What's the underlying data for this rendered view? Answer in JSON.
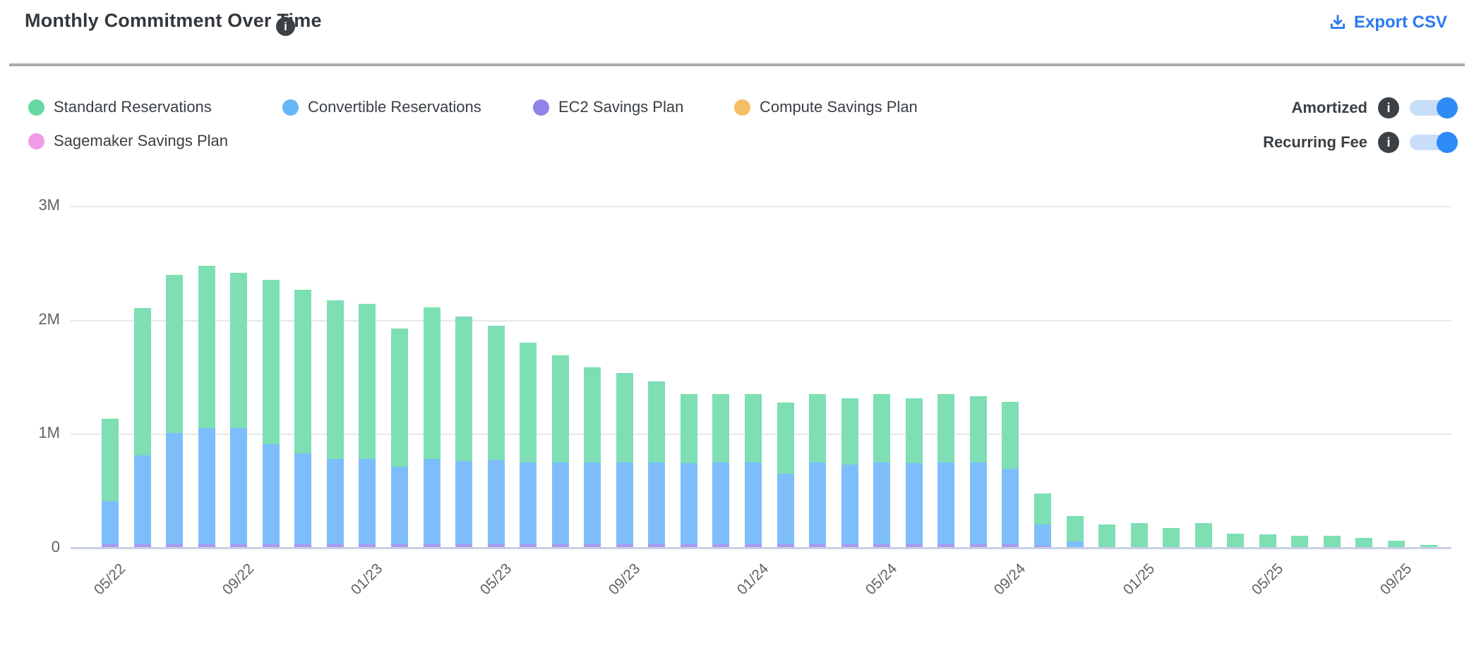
{
  "header": {
    "title": "Monthly Commitment Over Time",
    "info_icon": "i",
    "export_label": "Export CSV"
  },
  "legend": [
    {
      "label": "Standard Reservations",
      "color": "#66d9a3"
    },
    {
      "label": "Convertible Reservations",
      "color": "#66b5f6"
    },
    {
      "label": "EC2 Savings Plan",
      "color": "#8f82e8"
    },
    {
      "label": "Compute Savings Plan",
      "color": "#f5bd64"
    },
    {
      "label": "Sagemaker Savings Plan",
      "color": "#ef9ce6"
    }
  ],
  "toggles": [
    {
      "label": "Amortized",
      "state": "on",
      "info_icon": "i"
    },
    {
      "label": "Recurring Fee",
      "state": "on",
      "info_icon": "i"
    }
  ],
  "colors": {
    "accent_blue": "#2979f2",
    "toggle_track": "#c8ddf9",
    "toggle_knob": "#2e8bf7",
    "grid": "#e7e7e9",
    "axis_line": "#c9cfe4"
  },
  "chart_data": {
    "type": "bar",
    "stacked": true,
    "title": "Monthly Commitment Over Time",
    "unit": "M (millions USD)",
    "ylim": [
      0,
      3
    ],
    "y_ticks": [
      "0",
      "1M",
      "2M",
      "3M"
    ],
    "x_tick_every": 4,
    "grid": true,
    "legend_position": "top-left",
    "categories": [
      "05/22",
      "06/22",
      "07/22",
      "08/22",
      "09/22",
      "10/22",
      "11/22",
      "12/22",
      "01/23",
      "02/23",
      "03/23",
      "04/23",
      "05/23",
      "06/23",
      "07/23",
      "08/23",
      "09/23",
      "10/23",
      "11/23",
      "12/23",
      "01/24",
      "02/24",
      "03/24",
      "04/24",
      "05/24",
      "06/24",
      "07/24",
      "08/24",
      "09/24",
      "10/24",
      "11/24",
      "12/24",
      "01/25",
      "02/25",
      "03/25",
      "04/25",
      "05/25",
      "06/25",
      "07/25",
      "08/25",
      "09/25",
      "10/25"
    ],
    "series_bottom_to_top": [
      {
        "name": "EC2 Savings Plan",
        "color": "#a99af0",
        "values": [
          0.025,
          0.025,
          0.025,
          0.025,
          0.025,
          0.025,
          0.025,
          0.025,
          0.025,
          0.025,
          0.025,
          0.025,
          0.025,
          0.025,
          0.025,
          0.025,
          0.025,
          0.025,
          0.025,
          0.025,
          0.025,
          0.025,
          0.025,
          0.025,
          0.025,
          0.025,
          0.025,
          0.025,
          0.025,
          0.01,
          0,
          0,
          0,
          0,
          0,
          0,
          0,
          0,
          0,
          0,
          0,
          0
        ]
      },
      {
        "name": "Convertible Reservations",
        "color": "#7dbefa",
        "values": [
          0.38,
          0.78,
          0.98,
          1.02,
          1.02,
          0.88,
          0.8,
          0.75,
          0.75,
          0.68,
          0.75,
          0.73,
          0.74,
          0.72,
          0.72,
          0.72,
          0.72,
          0.72,
          0.71,
          0.72,
          0.72,
          0.62,
          0.72,
          0.7,
          0.72,
          0.71,
          0.72,
          0.72,
          0.66,
          0.19,
          0.05,
          0,
          0,
          0,
          0,
          0,
          0,
          0,
          0,
          0,
          0,
          0
        ]
      },
      {
        "name": "Standard Reservations",
        "color": "#7ddfb3",
        "values": [
          0.72,
          1.29,
          1.38,
          1.42,
          1.36,
          1.44,
          1.43,
          1.39,
          1.36,
          1.21,
          1.33,
          1.27,
          1.18,
          1.05,
          0.94,
          0.83,
          0.78,
          0.71,
          0.61,
          0.6,
          0.6,
          0.62,
          0.6,
          0.58,
          0.6,
          0.57,
          0.6,
          0.58,
          0.59,
          0.27,
          0.22,
          0.2,
          0.21,
          0.17,
          0.21,
          0.12,
          0.11,
          0.1,
          0.1,
          0.08,
          0.055,
          0.02
        ]
      },
      {
        "name": "Compute Savings Plan",
        "color": "#f5bd64",
        "values": [
          0,
          0,
          0,
          0,
          0,
          0,
          0,
          0,
          0,
          0,
          0,
          0,
          0,
          0,
          0,
          0,
          0,
          0,
          0,
          0,
          0,
          0,
          0,
          0,
          0,
          0,
          0,
          0,
          0,
          0,
          0,
          0,
          0,
          0,
          0,
          0,
          0,
          0,
          0,
          0,
          0,
          0
        ]
      },
      {
        "name": "Sagemaker Savings Plan",
        "color": "#ef9ce6",
        "values": [
          0,
          0,
          0,
          0,
          0,
          0,
          0,
          0,
          0,
          0,
          0,
          0,
          0,
          0,
          0,
          0,
          0,
          0,
          0,
          0,
          0,
          0,
          0,
          0,
          0,
          0,
          0,
          0,
          0,
          0,
          0,
          0,
          0,
          0,
          0,
          0,
          0,
          0,
          0,
          0,
          0,
          0
        ]
      }
    ]
  }
}
